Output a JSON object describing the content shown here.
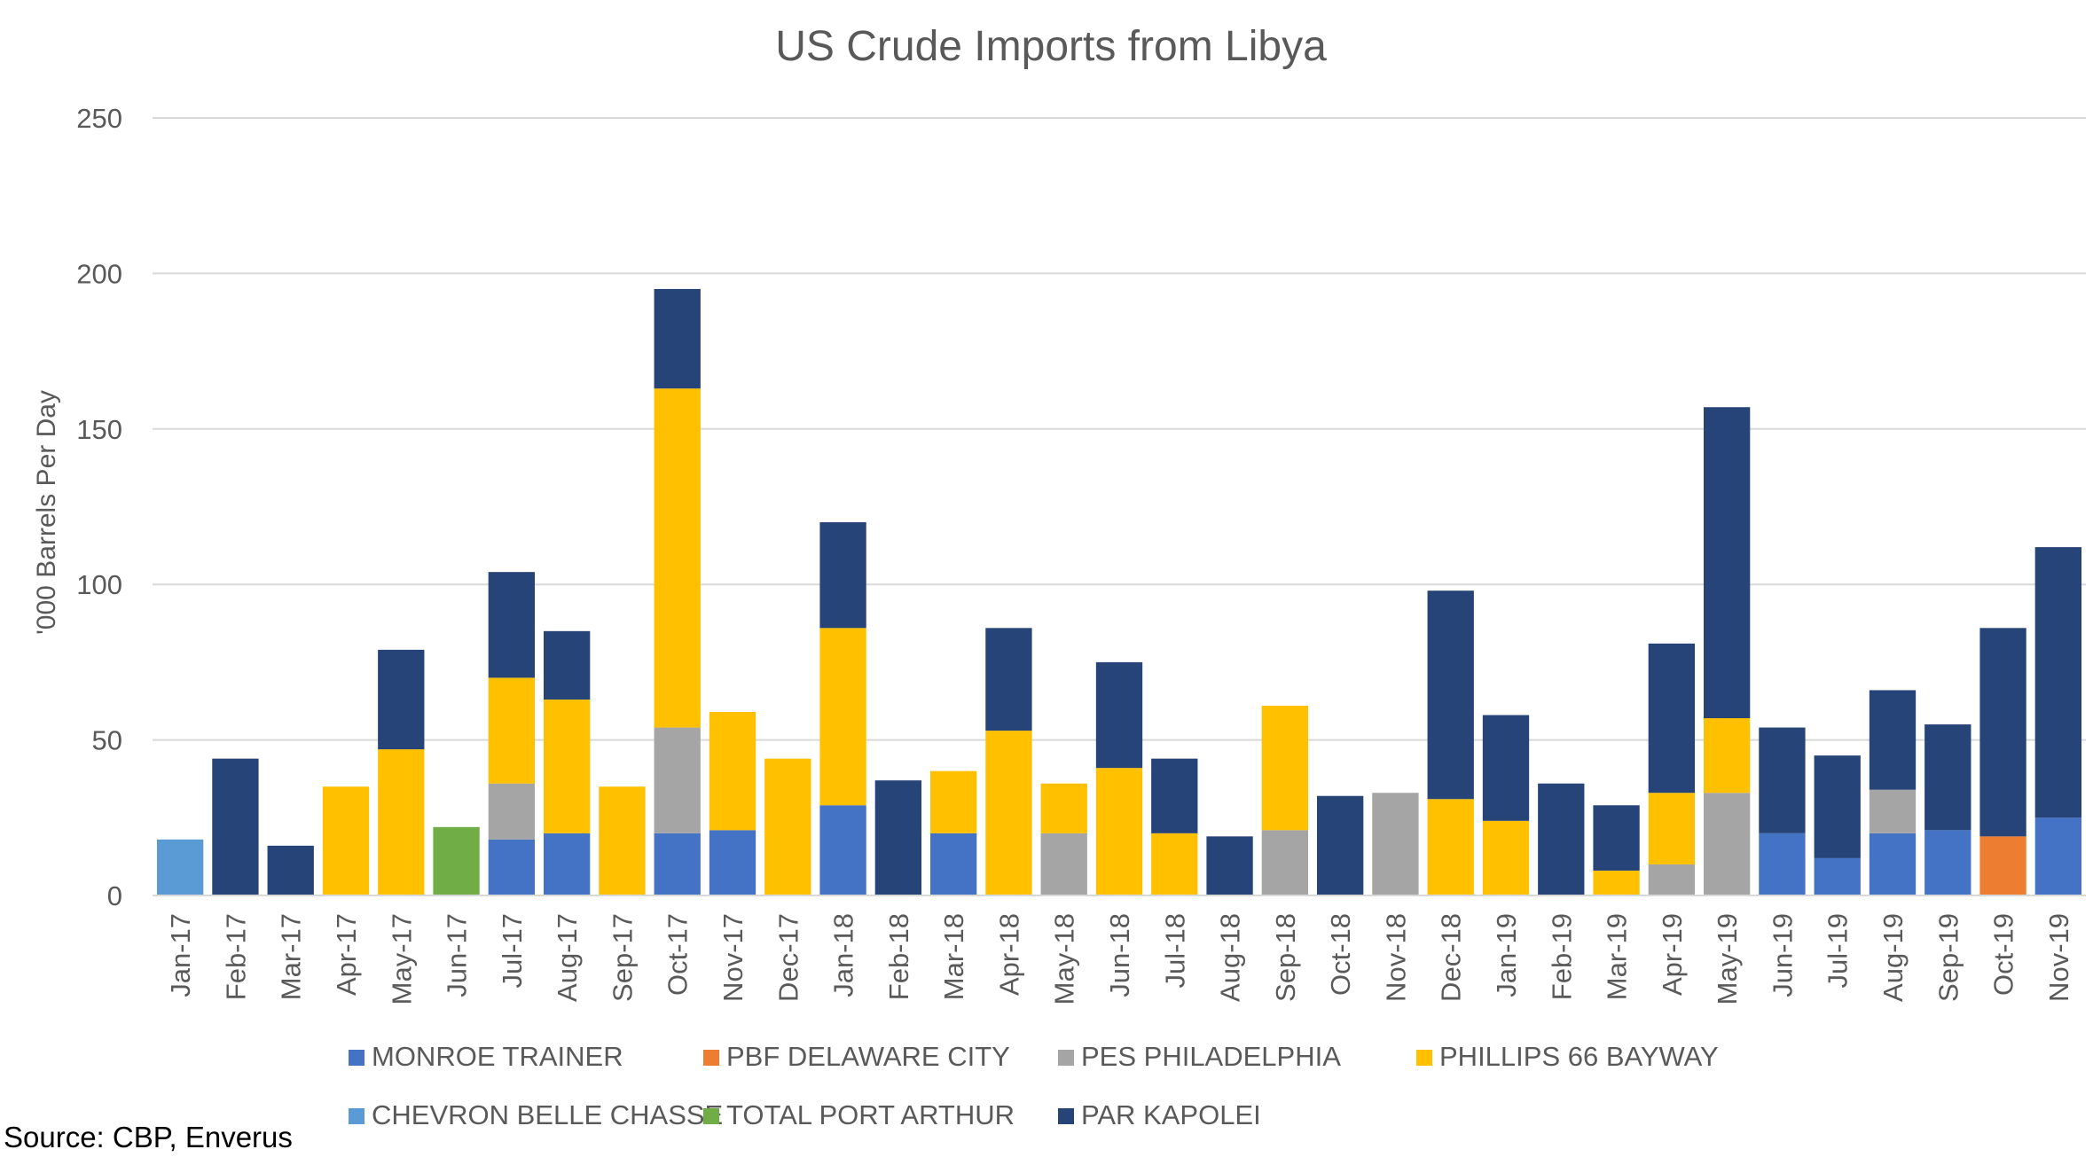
{
  "chart_data": {
    "type": "bar",
    "stacked": true,
    "title": "US Crude Imports from Libya",
    "ylabel": "'000 Barrels Per Day",
    "xlabel": "",
    "ylim": [
      0,
      250
    ],
    "yticks": [
      0,
      50,
      100,
      150,
      200,
      250
    ],
    "grid": true,
    "legend_position": "bottom",
    "categories": [
      "Jan-17",
      "Feb-17",
      "Mar-17",
      "Apr-17",
      "May-17",
      "Jun-17",
      "Jul-17",
      "Aug-17",
      "Sep-17",
      "Oct-17",
      "Nov-17",
      "Dec-17",
      "Jan-18",
      "Feb-18",
      "Mar-18",
      "Apr-18",
      "May-18",
      "Jun-18",
      "Jul-18",
      "Aug-18",
      "Sep-18",
      "Oct-18",
      "Nov-18",
      "Dec-18",
      "Jan-19",
      "Feb-19",
      "Mar-19",
      "Apr-19",
      "May-19",
      "Jun-19",
      "Jul-19",
      "Aug-19",
      "Sep-19",
      "Oct-19",
      "Nov-19"
    ],
    "series": [
      {
        "name": "MONROE TRAINER",
        "color": "#4472C4",
        "values": [
          0,
          0,
          0,
          0,
          0,
          0,
          18,
          20,
          0,
          20,
          21,
          0,
          29,
          0,
          20,
          0,
          0,
          0,
          0,
          0,
          0,
          0,
          0,
          0,
          0,
          0,
          0,
          0,
          0,
          20,
          12,
          20,
          21,
          0,
          25
        ]
      },
      {
        "name": "PBF DELAWARE CITY",
        "color": "#ED7D31",
        "values": [
          0,
          0,
          0,
          0,
          0,
          0,
          0,
          0,
          0,
          0,
          0,
          0,
          0,
          0,
          0,
          0,
          0,
          0,
          0,
          0,
          0,
          0,
          0,
          0,
          0,
          0,
          0,
          0,
          0,
          0,
          0,
          0,
          0,
          19,
          0
        ]
      },
      {
        "name": "PES PHILADELPHIA",
        "color": "#A5A5A5",
        "values": [
          0,
          0,
          0,
          0,
          0,
          0,
          18,
          0,
          0,
          34,
          0,
          0,
          0,
          0,
          0,
          0,
          20,
          0,
          0,
          0,
          21,
          0,
          33,
          0,
          0,
          0,
          0,
          10,
          33,
          0,
          0,
          14,
          0,
          0,
          0
        ]
      },
      {
        "name": "PHILLIPS 66 BAYWAY",
        "color": "#FFC000",
        "values": [
          0,
          0,
          0,
          35,
          47,
          0,
          34,
          43,
          35,
          109,
          38,
          44,
          57,
          0,
          20,
          53,
          16,
          41,
          20,
          0,
          40,
          0,
          0,
          31,
          24,
          0,
          8,
          23,
          24,
          0,
          0,
          0,
          0,
          0,
          0
        ]
      },
      {
        "name": "CHEVRON BELLE CHASSE",
        "color": "#5B9BD5",
        "values": [
          18,
          0,
          0,
          0,
          0,
          0,
          0,
          0,
          0,
          0,
          0,
          0,
          0,
          0,
          0,
          0,
          0,
          0,
          0,
          0,
          0,
          0,
          0,
          0,
          0,
          0,
          0,
          0,
          0,
          0,
          0,
          0,
          0,
          0,
          0
        ]
      },
      {
        "name": "TOTAL PORT ARTHUR",
        "color": "#70AD47",
        "values": [
          0,
          0,
          0,
          0,
          0,
          22,
          0,
          0,
          0,
          0,
          0,
          0,
          0,
          0,
          0,
          0,
          0,
          0,
          0,
          0,
          0,
          0,
          0,
          0,
          0,
          0,
          0,
          0,
          0,
          0,
          0,
          0,
          0,
          0,
          0
        ]
      },
      {
        "name": "PAR KAPOLEI",
        "color": "#264478",
        "values": [
          0,
          44,
          16,
          0,
          32,
          0,
          34,
          22,
          0,
          32,
          0,
          0,
          34,
          37,
          0,
          33,
          0,
          34,
          24,
          19,
          0,
          32,
          0,
          67,
          34,
          36,
          21,
          48,
          100,
          34,
          33,
          32,
          34,
          67,
          87
        ]
      }
    ],
    "legend_rows": [
      [
        "MONROE TRAINER",
        "PBF DELAWARE CITY",
        "PES PHILADELPHIA",
        "PHILLIPS 66 BAYWAY"
      ],
      [
        "CHEVRON BELLE CHASSE",
        "TOTAL PORT ARTHUR",
        "PAR KAPOLEI"
      ]
    ]
  },
  "source_note": "Source: CBP, Enverus"
}
